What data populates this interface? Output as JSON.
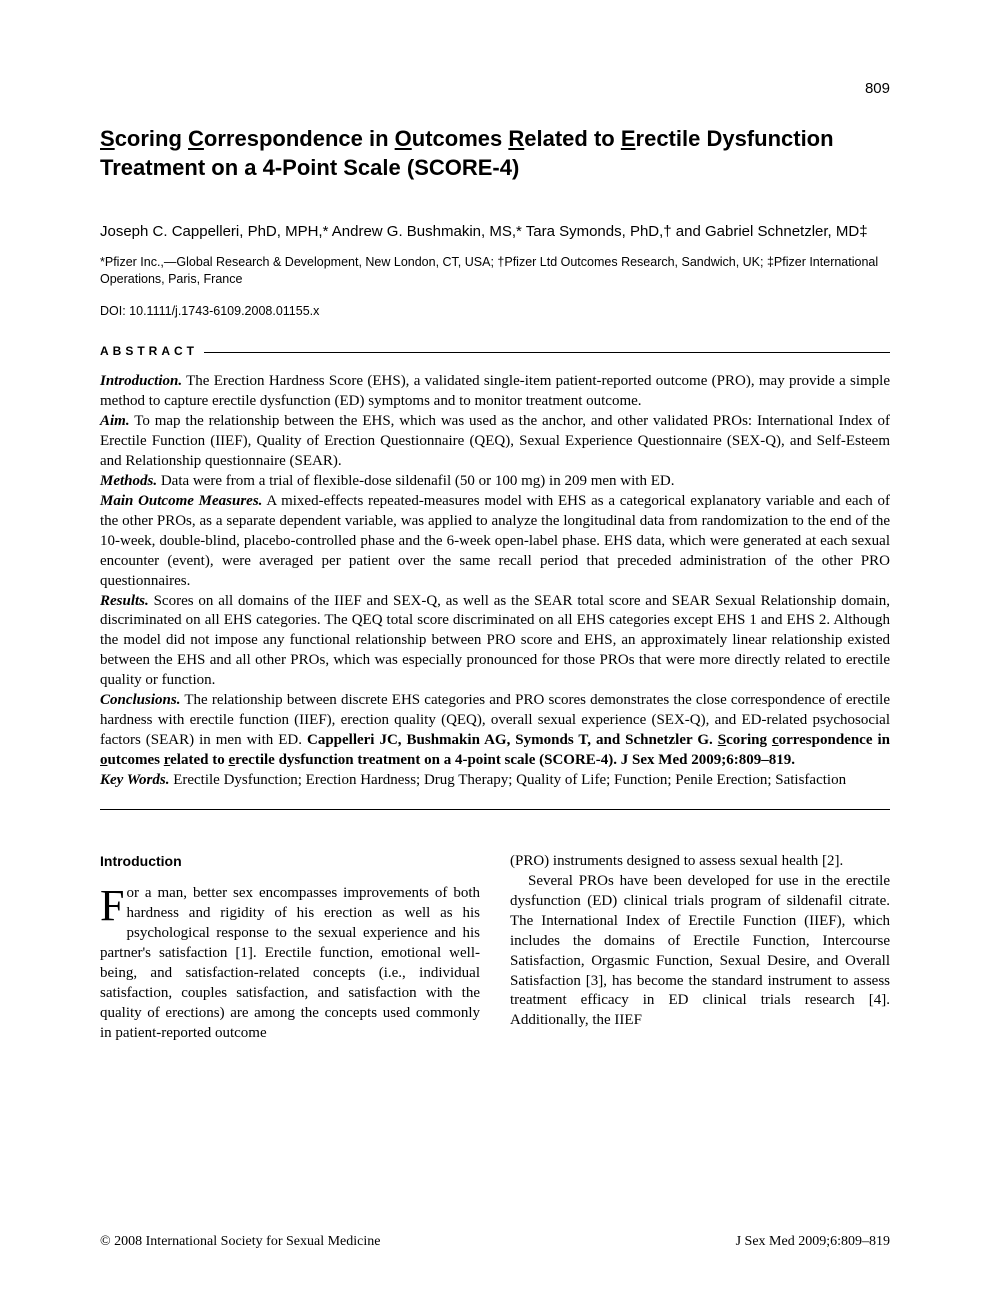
{
  "page_number": "809",
  "title_parts": {
    "s": "S",
    "coring": "coring ",
    "c": "C",
    "orr": "orrespondence in ",
    "o": "O",
    "utc": "utcomes ",
    "r": "R",
    "elated": "elated to ",
    "e": "E",
    "rectile": "rectile Dysfunction Treatment on a 4-Point Scale (SCORE-4)"
  },
  "authors": "Joseph C. Cappelleri, PhD, MPH,* Andrew G. Bushmakin, MS,* Tara Symonds, PhD,† and Gabriel Schnetzler, MD‡",
  "affiliations": "*Pfizer Inc.,—Global Research & Development, New London, CT, USA; †Pfizer Ltd Outcomes Research, Sandwich, UK; ‡Pfizer International Operations, Paris, France",
  "doi": "DOI: 10.1111/j.1743-6109.2008.01155.x",
  "abstract_heading": "ABSTRACT",
  "abstract": {
    "intro_label": "Introduction.",
    "intro_text": "The Erection Hardness Score (EHS), a validated single-item patient-reported outcome (PRO), may provide a simple method to capture erectile dysfunction (ED) symptoms and to monitor treatment outcome.",
    "aim_label": "Aim.",
    "aim_text": "To map the relationship between the EHS, which was used as the anchor, and other validated PROs: International Index of Erectile Function (IIEF), Quality of Erection Questionnaire (QEQ), Sexual Experience Questionnaire (SEX-Q), and Self-Esteem and Relationship questionnaire (SEAR).",
    "methods_label": "Methods.",
    "methods_text": "Data were from a trial of flexible-dose sildenafil (50 or 100 mg) in 209 men with ED.",
    "mom_label": "Main Outcome Measures.",
    "mom_text": "A mixed-effects repeated-measures model with EHS as a categorical explanatory variable and each of the other PROs, as a separate dependent variable, was applied to analyze the longitudinal data from randomization to the end of the 10-week, double-blind, placebo-controlled phase and the 6-week open-label phase. EHS data, which were generated at each sexual encounter (event), were averaged per patient over the same recall period that preceded administration of the other PRO questionnaires.",
    "results_label": "Results.",
    "results_text": "Scores on all domains of the IIEF and SEX-Q, as well as the SEAR total score and SEAR Sexual Relationship domain, discriminated on all EHS categories. The QEQ total score discriminated on all EHS categories except EHS 1 and EHS 2. Although the model did not impose any functional relationship between PRO score and EHS, an approximately linear relationship existed between the EHS and all other PROs, which was especially pronounced for those PROs that were more directly related to erectile quality or function.",
    "concl_label": "Conclusions.",
    "concl_text": "The relationship between discrete EHS categories and PRO scores demonstrates the close correspondence of erectile hardness with erectile function (IIEF), erection quality (QEQ), overall sexual experience (SEX-Q), and ED-related psychosocial factors (SEAR) in men with ED.",
    "citation_lead": "Cappelleri JC, Bushmakin AG, Symonds T, and Schnetzler G. ",
    "citation_title_parts": {
      "s": "S",
      "coring": "coring ",
      "c": "c",
      "orr": "orrespondence in ",
      "o": "o",
      "utc": "utcomes ",
      "r": "r",
      "elated": "elated to ",
      "e": "e",
      "rectile": "rectile dysfunction treatment on a 4-point scale (SCORE-4). J Sex Med 2009;6:809–819."
    },
    "keywords_label": "Key Words.",
    "keywords_text": "Erectile Dysfunction; Erection Hardness; Drug Therapy; Quality of Life; Function; Penile Erection; Satisfaction"
  },
  "intro_heading": "Introduction",
  "body": {
    "col1_first_letter": "F",
    "col1_p1": "or a man, better sex encompasses improvements of both hardness and rigidity of his erection as well as his psychological response to the sexual experience and his partner's satisfaction [1]. Erectile function, emotional well-being, and satisfaction-related concepts (i.e., individual satisfaction, couples satisfaction, and satisfaction with the quality of erections) are among the concepts used commonly in patient-reported outcome",
    "col2_p1": "(PRO) instruments designed to assess sexual health [2].",
    "col2_p2": "Several PROs have been developed for use in the erectile dysfunction (ED) clinical trials program of sildenafil citrate. The International Index of Erectile Function (IIEF), which includes the domains of Erectile Function, Intercourse Satisfaction, Orgasmic Function, Sexual Desire, and Overall Satisfaction [3], has become the standard instrument to assess treatment efficacy in ED clinical trials research [4]. Additionally, the IIEF"
  },
  "footer_left": "© 2008 International Society for Sexual Medicine",
  "footer_right": "J Sex Med 2009;6:809–819"
}
